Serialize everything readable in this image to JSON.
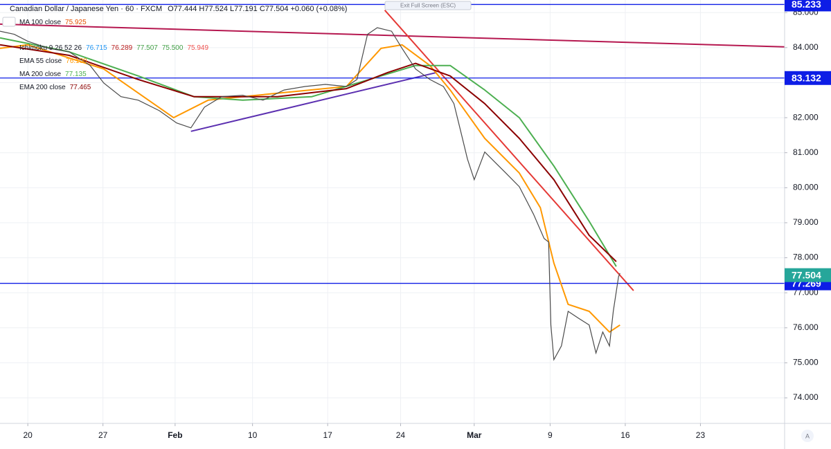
{
  "chart_data": {
    "type": "line",
    "title": "Canadian Dollar / Japanese Yen · 60 · FXCM",
    "ohlc": "O77.444 H77.524 L77.191 C77.504 +0.060 (+0.08%)",
    "fullscreen_hint": "Exit Full Screen (ESC)",
    "scale_button": "A",
    "xlim": [
      -0.37,
      10.07
    ],
    "ylim": [
      73.27,
      85.36
    ],
    "xticks": [
      {
        "value": 0,
        "label": "20"
      },
      {
        "value": 1,
        "label": "27"
      },
      {
        "value": 1.96,
        "label": "Feb"
      },
      {
        "value": 2.99,
        "label": "10"
      },
      {
        "value": 3.99,
        "label": "17"
      },
      {
        "value": 4.96,
        "label": "24"
      },
      {
        "value": 5.94,
        "label": "Mar"
      },
      {
        "value": 6.95,
        "label": "9"
      },
      {
        "value": 7.95,
        "label": "16"
      },
      {
        "value": 8.95,
        "label": "23"
      }
    ],
    "yticks": [
      {
        "value": 74,
        "label": "74.000"
      },
      {
        "value": 75,
        "label": "75.000"
      },
      {
        "value": 76,
        "label": "76.000"
      },
      {
        "value": 77,
        "label": "77.000"
      },
      {
        "value": 78,
        "label": "78.000"
      },
      {
        "value": 79,
        "label": "79.000"
      },
      {
        "value": 80,
        "label": "80.000"
      },
      {
        "value": 81,
        "label": "81.000"
      },
      {
        "value": 82,
        "label": "82.000"
      },
      {
        "value": 83,
        "label": "83.000"
      },
      {
        "value": 84,
        "label": "84.000"
      },
      {
        "value": 85,
        "label": "85.000"
      }
    ],
    "grid": true,
    "price": {
      "color": "#4a4a4a",
      "last": 77.504,
      "last_color": "#26a69a",
      "x": [
        -0.37,
        -0.18,
        0,
        0.28,
        0.55,
        0.83,
        1.01,
        1.24,
        1.47,
        1.75,
        1.98,
        2.17,
        2.35,
        2.58,
        2.86,
        3.13,
        3.41,
        3.69,
        3.96,
        4.24,
        4.38,
        4.52,
        4.65,
        4.84,
        4.98,
        5.16,
        5.35,
        5.53,
        5.67,
        5.76,
        5.85,
        5.94,
        6.08,
        6.22,
        6.36,
        6.54,
        6.73,
        6.87,
        6.93,
        6.96,
        7.0,
        7.1,
        7.19,
        7.33,
        7.47,
        7.56,
        7.65,
        7.74,
        7.79,
        7.86,
        7.88
      ],
      "values": [
        84.47,
        84.38,
        84.18,
        83.98,
        83.88,
        83.49,
        82.99,
        82.6,
        82.5,
        82.2,
        81.85,
        81.71,
        82.3,
        82.6,
        82.64,
        82.5,
        82.79,
        82.89,
        82.95,
        82.89,
        83.09,
        84.38,
        84.57,
        84.47,
        83.98,
        83.39,
        83.09,
        82.89,
        82.4,
        81.61,
        80.82,
        80.23,
        81.02,
        80.72,
        80.42,
        80.03,
        79.24,
        78.55,
        78.45,
        76.08,
        75.09,
        75.48,
        76.47,
        76.27,
        76.08,
        75.28,
        75.88,
        75.48,
        76.47,
        77.46,
        77.56
      ]
    },
    "other_indicators": [
      {
        "name": "MA 100 close",
        "readouts": [
          "75.925"
        ],
        "colors": [
          "#e65100"
        ]
      },
      {
        "name": "Ichimoku 9 26 52 26",
        "readouts": [
          "76.715",
          "76.289",
          "77.507",
          "75.500",
          "75.949"
        ],
        "colors": [
          "#2196f3",
          "#b71c1c",
          "#43a047",
          "#43a047",
          "#ef5350"
        ]
      }
    ],
    "series": [
      {
        "name": "EMA 55 close",
        "readouts": [
          "76.100"
        ],
        "color": "#ff9800",
        "x": [
          -0.37,
          0,
          1.01,
          1.94,
          2.4,
          3.32,
          4.24,
          4.7,
          4.98,
          5.35,
          5.62,
          6.08,
          6.54,
          6.82,
          7.0,
          7.19,
          7.47,
          7.74,
          7.88
        ],
        "values": [
          83.98,
          84.08,
          83.39,
          82.0,
          82.5,
          82.7,
          82.89,
          83.98,
          84.08,
          83.49,
          82.79,
          81.41,
          80.42,
          79.43,
          77.85,
          76.67,
          76.47,
          75.88,
          76.08
        ]
      },
      {
        "name": "MA 200 close",
        "readouts": [
          "77.135"
        ],
        "color": "#4caf50",
        "x": [
          -0.37,
          0.55,
          1.47,
          2.21,
          2.86,
          3.78,
          4.7,
          5.16,
          5.62,
          6.08,
          6.54,
          7.0,
          7.47,
          7.83
        ],
        "values": [
          84.28,
          83.88,
          83.19,
          82.6,
          82.5,
          82.6,
          83.19,
          83.49,
          83.49,
          82.79,
          82.0,
          80.62,
          79.04,
          77.75
        ]
      },
      {
        "name": "EMA 200 close",
        "readouts": [
          "77.465"
        ],
        "color": "#8b0000",
        "x": [
          -0.37,
          0.55,
          1.47,
          2.21,
          3.32,
          4.24,
          4.79,
          5.16,
          5.62,
          6.08,
          6.54,
          7.0,
          7.47,
          7.83
        ],
        "values": [
          84.08,
          83.78,
          83.09,
          82.6,
          82.6,
          82.83,
          83.29,
          83.55,
          83.19,
          82.4,
          81.41,
          80.23,
          78.64,
          77.89
        ]
      }
    ],
    "hlines": [
      85.233,
      83.132,
      77.269
    ],
    "hline_color": "#0d1de6",
    "trendlines": [
      {
        "color": "#b5174f",
        "x": [
          -0.37,
          10.07
        ],
        "values": [
          84.67,
          84.02
        ]
      },
      {
        "color": "#5b2fb0",
        "x": [
          2.17,
          5.44
        ],
        "values": [
          81.61,
          83.29
        ]
      },
      {
        "color": "#e53935",
        "x": [
          4.75,
          8.06
        ],
        "values": [
          85.07,
          77.06
        ]
      }
    ]
  }
}
